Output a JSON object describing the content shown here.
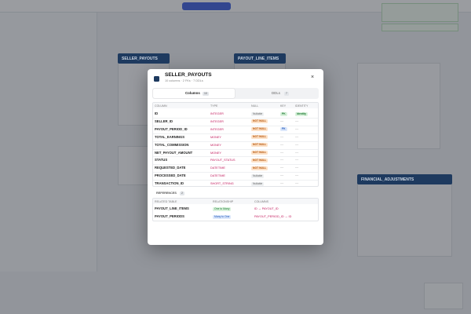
{
  "background": {
    "tables": [
      "SELLER_PAYOUTS",
      "PAYOUT_LINE_ITEMS",
      "FINANCIAL_ADJUSTMENTS"
    ]
  },
  "modal": {
    "title": "SELLER_PAYOUTS",
    "subtitle": "10 columns · 2 FKs · 7 DDLs",
    "close": "×",
    "tabs": [
      {
        "label": "Columns",
        "count": 10
      },
      {
        "label": "DDLs",
        "count": 7
      }
    ],
    "columns": {
      "headers": [
        "COLUMN",
        "TYPE",
        "NULL",
        "KEY",
        "IDENTITY"
      ],
      "rows": [
        [
          "ID",
          "INTEGER",
          "Nullable",
          "PK",
          "Identity"
        ],
        [
          "SELLER_ID",
          "INTEGER",
          "NOT NULL",
          "—",
          "—"
        ],
        [
          "PAYOUT_PERIOD_ID",
          "INTEGER",
          "NOT NULL",
          "FK",
          "—"
        ],
        [
          "TOTAL_EARNINGS",
          "MONEY",
          "NOT NULL",
          "—",
          "—"
        ],
        [
          "TOTAL_COMMISSION",
          "MONEY",
          "NOT NULL",
          "—",
          "—"
        ],
        [
          "NET_PAYOUT_AMOUNT",
          "MONEY",
          "NOT NULL",
          "—",
          "—"
        ],
        [
          "STATUS",
          "PAYOUT_STATUS",
          "NOT NULL",
          "—",
          "—"
        ],
        [
          "REQUESTED_DATE",
          "DATETIME",
          "NOT NULL",
          "—",
          "—"
        ],
        [
          "PROCESSED_DATE",
          "DATETIME",
          "Nullable",
          "—",
          "—"
        ],
        [
          "TRANSACTION_ID",
          "SHORT_STRING",
          "Nullable",
          "—",
          "—"
        ]
      ]
    },
    "references": {
      "title": "REFERENCES",
      "count": 2,
      "headers": [
        "RELATED TABLE",
        "RELATIONSHIP",
        "COLUMNS"
      ],
      "rows": [
        [
          "PAYOUT_LINE_ITEMS",
          "One to Many",
          "ID → PAYOUT_ID"
        ],
        [
          "PAYOUT_PERIODS",
          "Many to One",
          "PAYOUT_PERIOD_ID → ID"
        ]
      ]
    }
  }
}
